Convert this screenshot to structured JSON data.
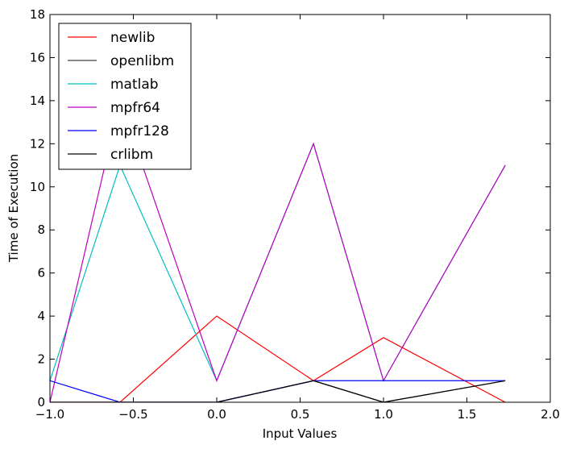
{
  "chart_data": {
    "type": "line",
    "xlabel": "Input Values",
    "ylabel": "Time of Execution",
    "xlim": [
      -1.0,
      2.0
    ],
    "ylim": [
      0,
      18
    ],
    "xticks": [
      -1.0,
      -0.5,
      0.0,
      0.5,
      1.0,
      1.5,
      2.0
    ],
    "xtick_labels": [
      "−1.0",
      "−0.5",
      "0.0",
      "0.5",
      "1.0",
      "1.5",
      "2.0"
    ],
    "yticks": [
      0,
      2,
      4,
      6,
      8,
      10,
      12,
      14,
      16,
      18
    ],
    "ytick_labels": [
      "0",
      "2",
      "4",
      "6",
      "8",
      "10",
      "12",
      "14",
      "16",
      "18"
    ],
    "grid": false,
    "legend_position": "top-left",
    "x": [
      -1.0,
      -0.58,
      0.0,
      0.58,
      1.0,
      1.73
    ],
    "series": [
      {
        "name": "newlib",
        "color": "#ff0000",
        "values": [
          0,
          0,
          4,
          1,
          3,
          0
        ]
      },
      {
        "name": "openlibm",
        "color": "#404040",
        "values": [
          0,
          0,
          0,
          1,
          0,
          1
        ]
      },
      {
        "name": "matlab",
        "color": "#00bfbf",
        "values": [
          1,
          11,
          1,
          12,
          1,
          11
        ]
      },
      {
        "name": "mpfr64",
        "color": "#bf00bf",
        "values": [
          0,
          14,
          1,
          12,
          1,
          11
        ]
      },
      {
        "name": "mpfr128",
        "color": "#0000ff",
        "values": [
          1,
          0,
          0,
          1,
          1,
          1
        ]
      },
      {
        "name": "crlibm",
        "color": "#000000",
        "values": [
          0,
          0,
          0,
          1,
          0,
          1
        ]
      }
    ]
  }
}
